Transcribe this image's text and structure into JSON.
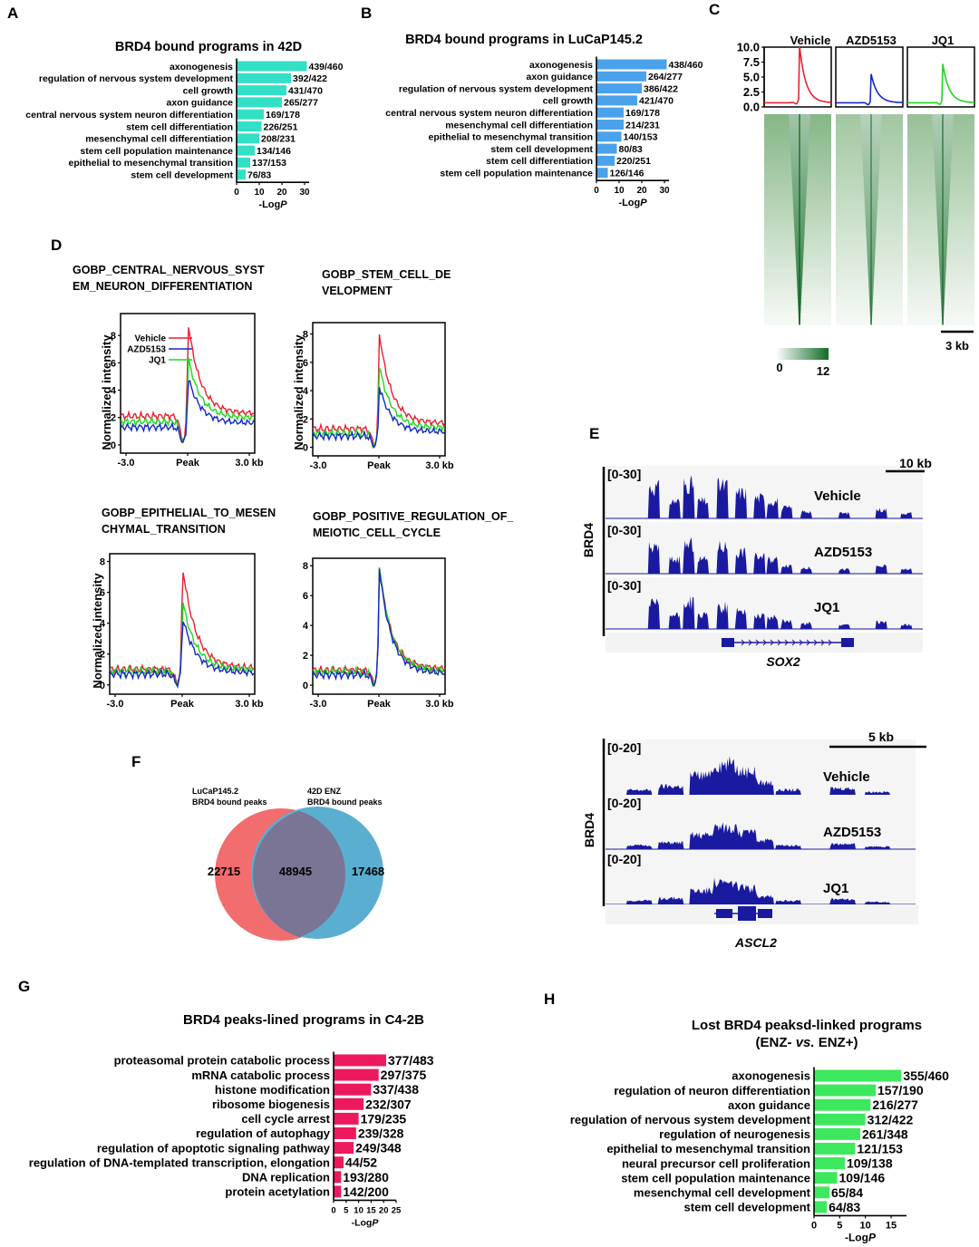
{
  "panels": {
    "A": "A",
    "B": "B",
    "C": "C",
    "D": "D",
    "E": "E",
    "F": "F",
    "G": "G",
    "H": "H"
  },
  "colors": {
    "a_bar": "#33e0c5",
    "b_bar": "#4aa2ea",
    "g_bar": "#ec1a5c",
    "h_bar": "#3ee85e",
    "vehicle": "#e8202f",
    "azd": "#1428c8",
    "jq1": "#1ed81e",
    "track": "#1a1aa0",
    "venn_left": "#f26d6d",
    "venn_right": "#5aaed0",
    "venn_overlap": "#7a7595"
  },
  "chart_data": [
    {
      "id": "A",
      "type": "bar",
      "orientation": "horizontal",
      "title": "BRD4 bound programs in 42D",
      "categories": [
        "axonogenesis",
        "regulation of nervous system development",
        "cell growth",
        "axon guidance",
        "central nervous system neuron differentiation",
        "stem cell differentiation",
        "mesenchymal cell differentiation",
        "stem cell population maintenance",
        "epithelial to mesenchymal transition",
        "stem cell development"
      ],
      "values": [
        31,
        24,
        22,
        20,
        12,
        11,
        10,
        8,
        6,
        4
      ],
      "labels": [
        "439/460",
        "392/422",
        "431/470",
        "265/277",
        "169/178",
        "226/251",
        "208/231",
        "134/146",
        "137/153",
        "76/83"
      ],
      "xticks": [
        "0",
        "10",
        "20",
        "30"
      ],
      "xlim": [
        0,
        32
      ],
      "xlabel": "-Log",
      "xlabel_italic": "P"
    },
    {
      "id": "B",
      "type": "bar",
      "orientation": "horizontal",
      "title": "BRD4 bound programs in LuCaP145.2",
      "categories": [
        "axonogenesis",
        "axon guidance",
        "regulation of nervous system development",
        "cell growth",
        "central nervous system neuron differentiation",
        "mesenchymal cell differentiation",
        "epithelial to mesenchymal transition",
        "stem cell development",
        "stem cell differentiation",
        "stem cell population maintenance"
      ],
      "values": [
        31,
        22,
        20,
        18,
        12,
        12,
        11,
        9,
        8,
        5
      ],
      "labels": [
        "438/460",
        "264/277",
        "386/422",
        "421/470",
        "169/178",
        "214/231",
        "140/153",
        "80/83",
        "220/251",
        "126/146"
      ],
      "xticks": [
        "0",
        "10",
        "20",
        "30"
      ],
      "xlim": [
        0,
        32
      ],
      "xlabel": "-Log",
      "xlabel_italic": "P"
    },
    {
      "id": "C",
      "type": "line",
      "series_names": [
        "Vehicle",
        "AZD5153",
        "JQ1"
      ],
      "peak_heights": [
        9.5,
        4.8,
        6.5
      ],
      "yticks": [
        "0.0",
        "2.5",
        "5.0",
        "7.5",
        "10.0"
      ],
      "ylim": [
        0,
        10
      ],
      "scalebar": "3 kb",
      "heat_min": "0",
      "heat_max": "12"
    },
    {
      "id": "D",
      "type": "line",
      "ylabel": "Normalized intensity",
      "xticks": [
        "-3.0",
        "Peak",
        "3.0 kb"
      ],
      "legend": [
        "Vehicle",
        "AZD5153",
        "JQ1"
      ],
      "plots": [
        {
          "title_l1": "GOBP_CENTRAL_NERVOUS_SYST",
          "title_l2": "EM_NEURON_DIFFERENTIATION",
          "yticks": [
            "0",
            "2",
            "4",
            "6",
            "8"
          ],
          "ymax": 9.6,
          "peaks": [
            9.2,
            5.1,
            6.6
          ],
          "base": [
            2.1,
            1.3,
            1.7
          ],
          "tail": [
            2.3,
            1.6,
            2.0
          ]
        },
        {
          "title_l1": "GOBP_STEM_CELL_DE",
          "title_l2": "VELOPMENT",
          "yticks": [
            "0",
            "2",
            "4",
            "6",
            "8"
          ],
          "ymax": 8.8,
          "peaks": [
            8.3,
            4.4,
            5.9
          ],
          "base": [
            1.3,
            0.8,
            1.0
          ],
          "tail": [
            1.7,
            1.1,
            1.4
          ]
        },
        {
          "title_l1": "GOBP_EPITHELIAL_TO_MESEN",
          "title_l2": "CHYMAL_TRANSITION",
          "yticks": [
            "0",
            "2",
            "4",
            "6",
            "8"
          ],
          "ymax": 8.5,
          "peaks": [
            7.9,
            4.5,
            5.6
          ],
          "base": [
            1.0,
            0.7,
            0.9
          ],
          "tail": [
            1.1,
            0.8,
            1.0
          ]
        },
        {
          "title_l1": "GOBP_POSITIVE_REGULATION_OF_",
          "title_l2": "MEIOTIC_CELL_CYCLE",
          "yticks": [
            "0",
            "2",
            "4",
            "6",
            "8"
          ],
          "ymax": 8.5,
          "peaks": [
            8.2,
            8.1,
            8.3
          ],
          "base": [
            1.0,
            0.7,
            0.9
          ],
          "tail": [
            1.1,
            0.8,
            1.0
          ]
        }
      ]
    },
    {
      "id": "E",
      "type": "tracks",
      "ylabel": "BRD4",
      "loci": [
        {
          "gene": "SOX2",
          "range": "[0-30]",
          "scalebar": "10 kb",
          "tracks": [
            "Vehicle",
            "AZD5153",
            "JQ1"
          ]
        },
        {
          "gene": "ASCL2",
          "range": "[0-20]",
          "scalebar": "5 kb",
          "tracks": [
            "Vehicle",
            "AZD5153",
            "JQ1"
          ]
        }
      ]
    },
    {
      "id": "F",
      "type": "venn",
      "left_label_l1": "LuCaP145.2",
      "left_label_l2": "BRD4 bound peaks",
      "right_label_l1": "42D ENZ",
      "right_label_l2": "BRD4 bound peaks",
      "left_only": "22715",
      "overlap": "48945",
      "right_only": "17468"
    },
    {
      "id": "G",
      "type": "bar",
      "orientation": "horizontal",
      "title": "BRD4 peaks-lined programs in C4-2B",
      "categories": [
        "proteasomal protein catabolic process",
        "mRNA catabolic process",
        "histone modification",
        "ribosome biogenesis",
        "cell cycle arrest",
        "regulation of autophagy",
        "regulation of apoptotic signaling pathway",
        "regulation of DNA-templated transcription, elongation",
        "DNA replication",
        "protein acetylation"
      ],
      "values": [
        21,
        18,
        15,
        12,
        10,
        9,
        8,
        4,
        3,
        3
      ],
      "labels": [
        "377/483",
        "297/375",
        "337/438",
        "232/307",
        "179/235",
        "239/328",
        "249/348",
        "44/52",
        "193/280",
        "142/200"
      ],
      "xticks": [
        "0",
        "5",
        "10",
        "15",
        "20",
        "25"
      ],
      "xlim": [
        0,
        25
      ],
      "xlabel": "-Log",
      "xlabel_italic": "P"
    },
    {
      "id": "H",
      "type": "bar",
      "orientation": "horizontal",
      "title_l1": "Lost BRD4 peaksd-linked programs",
      "title_l2_a": "(ENZ- ",
      "title_l2_b": "vs.",
      "title_l2_c": " ENZ+)",
      "categories": [
        "axonogenesis",
        "regulation of neuron differentiation",
        "axon guidance",
        "regulation of nervous system development",
        "regulation of neurogenesis",
        "epithelial to mesenchymal transition",
        "neural precursor cell proliferation",
        "stem cell population maintenance",
        "mesenchymal cell development",
        "stem cell development"
      ],
      "values": [
        17,
        12,
        11,
        10,
        9,
        8,
        6,
        4.5,
        3,
        2.5
      ],
      "labels": [
        "355/460",
        "157/190",
        "216/277",
        "312/422",
        "261/348",
        "121/153",
        "109/138",
        "109/146",
        "65/84",
        "64/83"
      ],
      "xticks": [
        "0",
        "5",
        "10",
        "15"
      ],
      "xlim": [
        0,
        18
      ],
      "xlabel": "-Log",
      "xlabel_italic": "P"
    }
  ]
}
